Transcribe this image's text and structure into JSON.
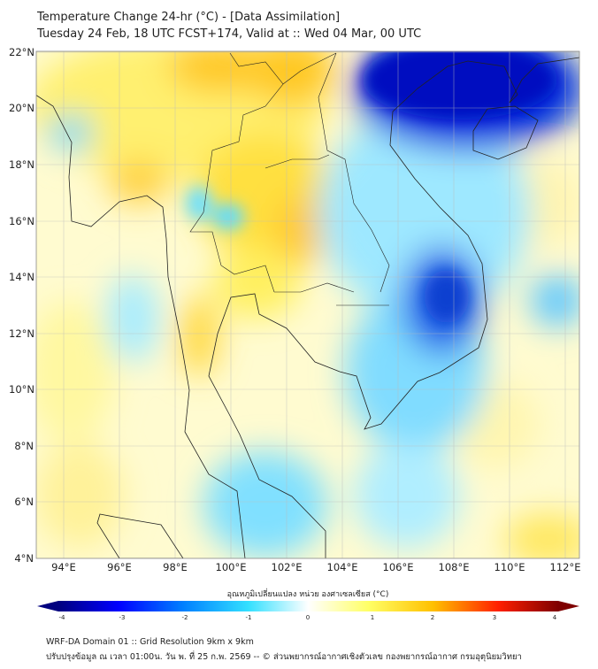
{
  "header": {
    "title": "Temperature Change 24-hr (°C) - [Data Assimilation]",
    "subtitle": "Tuesday 24 Feb, 18 UTC FCST+174, Valid at :: Wed 04 Mar, 00 UTC"
  },
  "map": {
    "lat_labels": [
      "22°N",
      "20°N",
      "18°N",
      "16°N",
      "14°N",
      "12°N",
      "10°N",
      "8°N",
      "6°N",
      "4°N"
    ],
    "lon_labels": [
      "94°E",
      "96°E",
      "98°E",
      "100°E",
      "102°E",
      "104°E",
      "106°E",
      "108°E",
      "110°E",
      "112°E"
    ],
    "extent": {
      "lon": [
        93,
        112.5
      ],
      "lat": [
        4,
        22.2
      ]
    }
  },
  "colorbar": {
    "title": "อุณหภูมิเปลี่ยนแปลง หน่วย องศาเซลเซียส (°C)",
    "ticks": [
      "-4",
      "-3",
      "-2",
      "-1",
      "0",
      "1",
      "2",
      "3",
      "4"
    ],
    "range": [
      -4,
      4
    ],
    "colors": [
      "#00007f",
      "#0000ff",
      "#0080ff",
      "#33e0ff",
      "#ffffff",
      "#ffff66",
      "#ffc000",
      "#ff2000",
      "#7f0000"
    ]
  },
  "footer": {
    "line1": "WRF-DA Domain 01 :: Grid Resolution 9km x 9km",
    "line2": "ปรับปรุงข้อมูล ณ เวลา 01:00น. วัน พ. ที่ 25 ก.พ. 2569 -- © ส่วนพยากรณ์อากาศเชิงตัวเลข กองพยากรณ์อากาศ กรมอุตุนิยมวิทยา"
  }
}
